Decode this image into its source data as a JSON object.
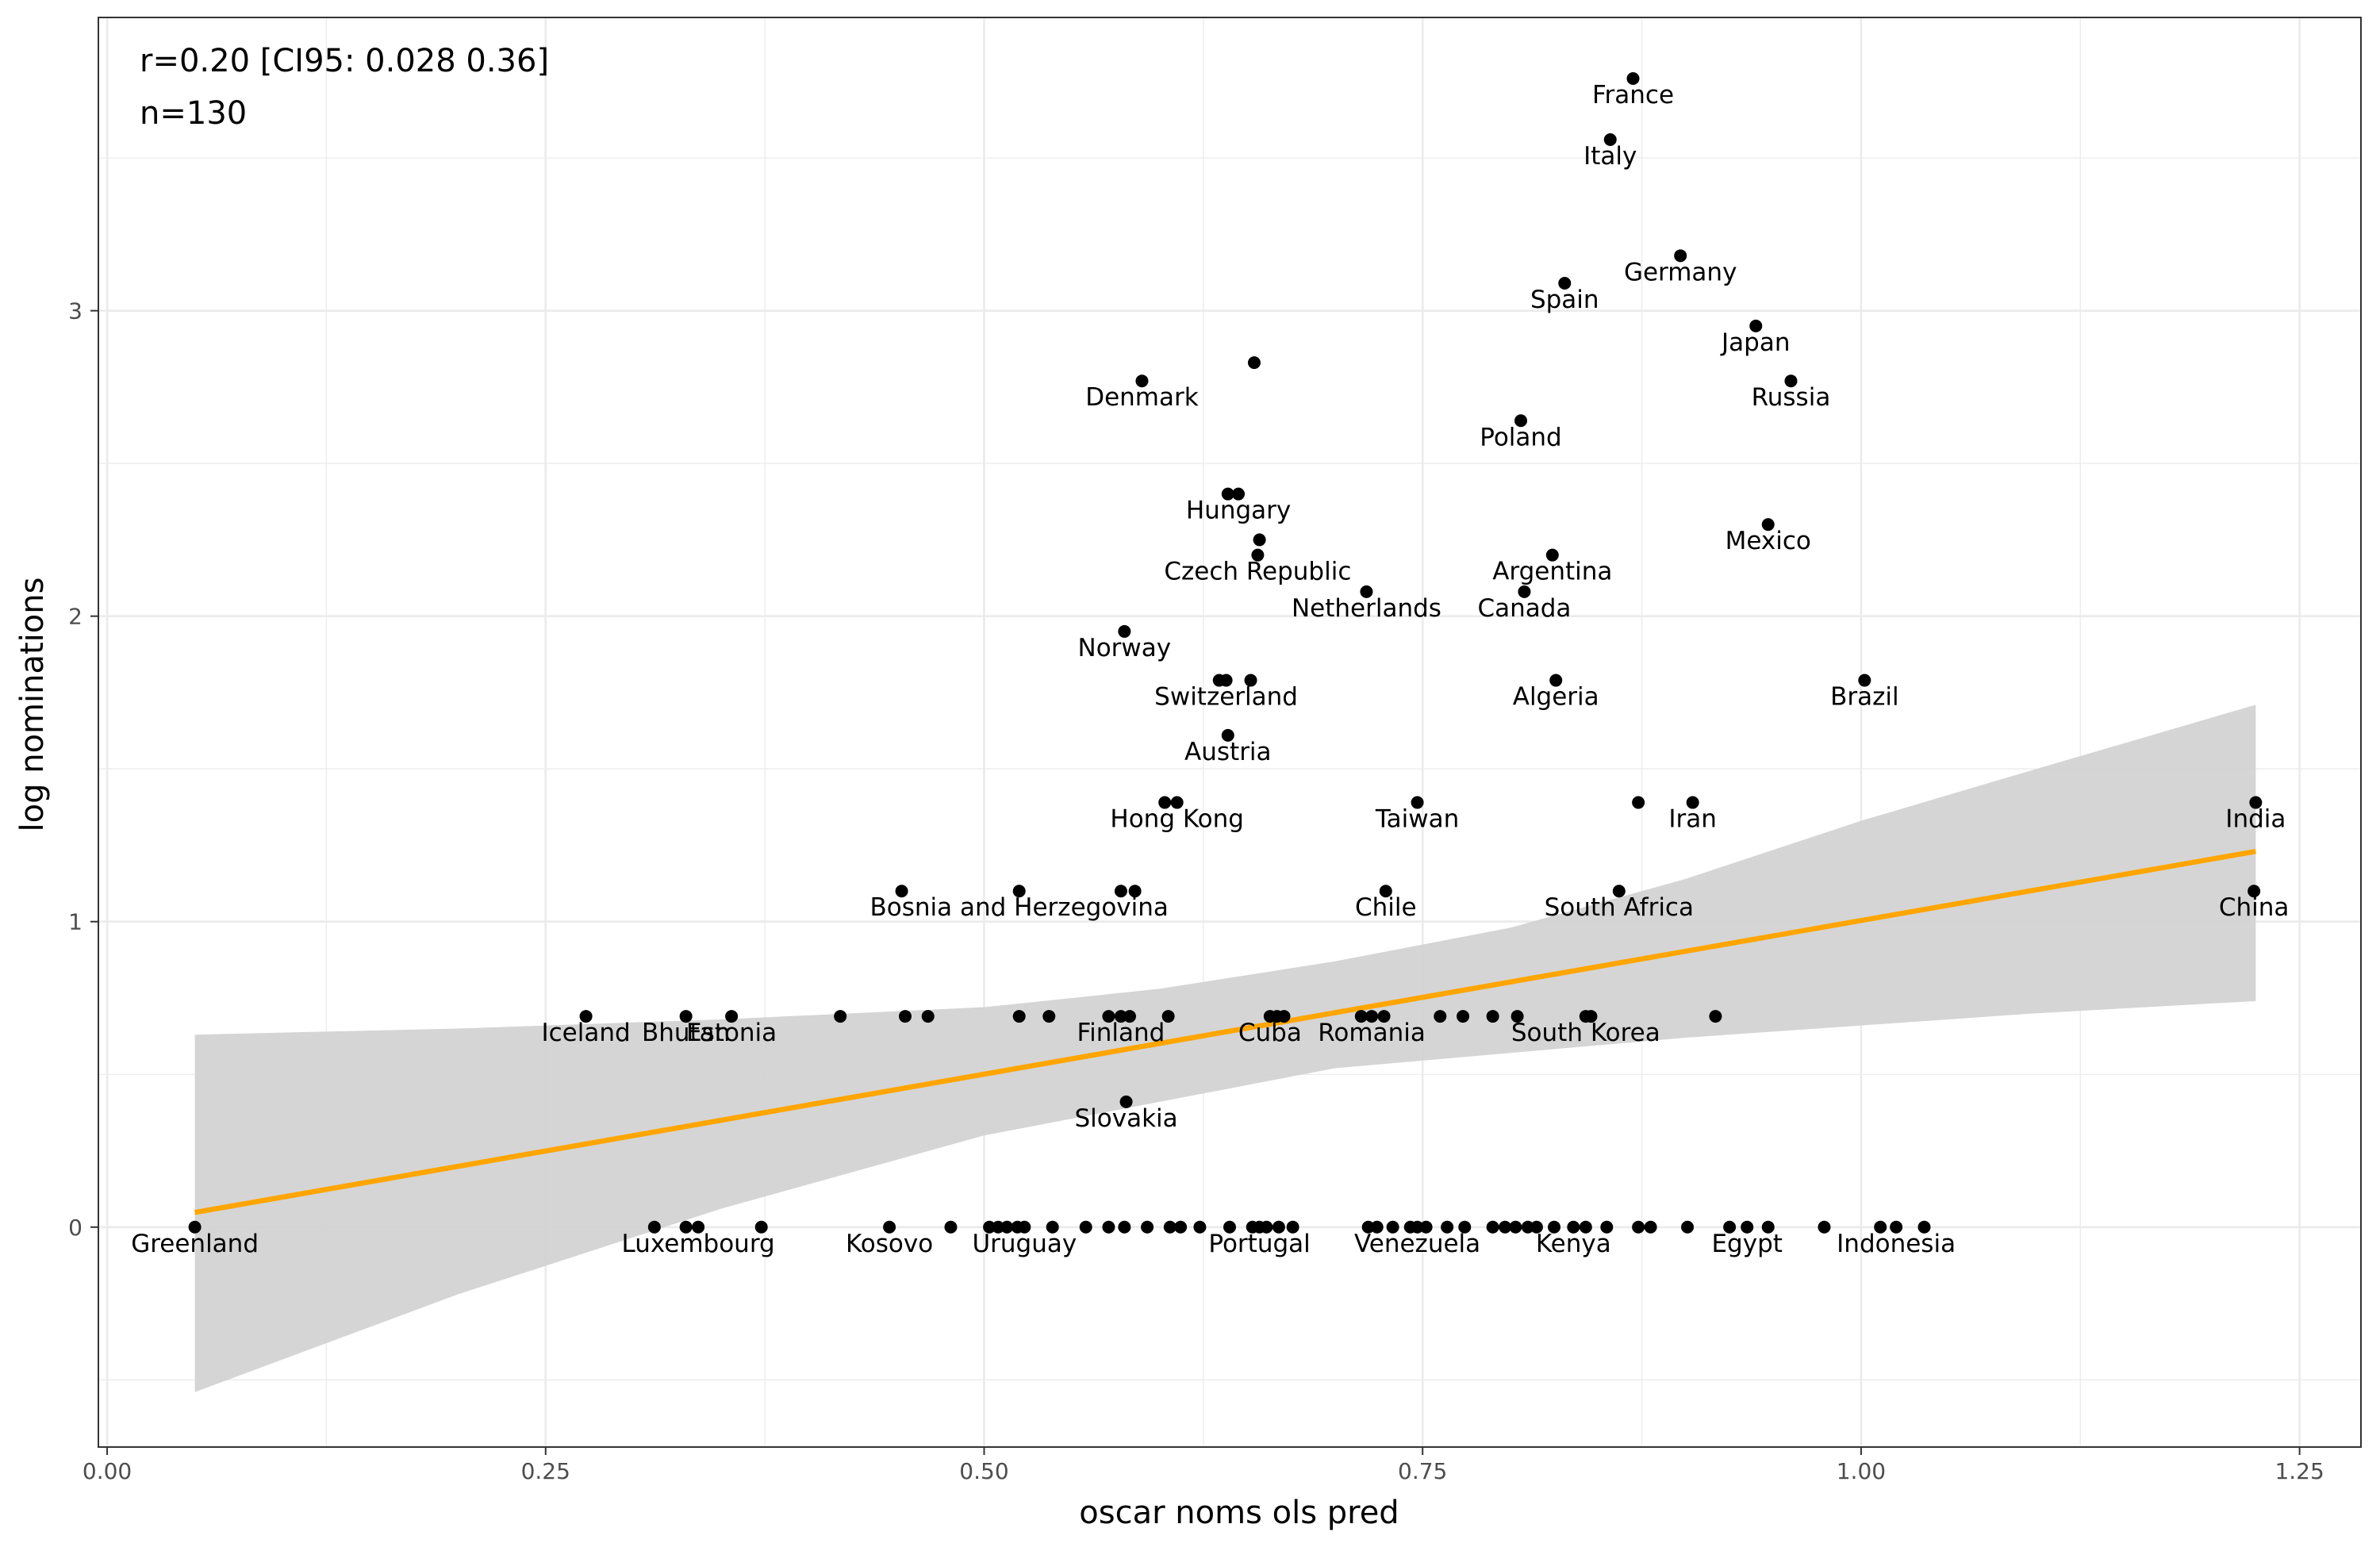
{
  "chart_data": {
    "type": "scatter",
    "title": "",
    "xlabel": "oscar noms ols pred",
    "ylabel": "log nominations",
    "xlim": [
      -0.005,
      1.285
    ],
    "ylim": [
      -0.72,
      3.96
    ],
    "x_ticks": [
      0.0,
      0.25,
      0.5,
      0.75,
      1.0,
      1.25
    ],
    "x_tick_labels": [
      "0.00",
      "0.25",
      "0.50",
      "0.75",
      "1.00",
      "1.25"
    ],
    "y_ticks": [
      0,
      1,
      2,
      3
    ],
    "y_tick_labels": [
      "0",
      "1",
      "2",
      "3"
    ],
    "grid": true,
    "annotations": [
      "r=0.20 [CI95: 0.028 0.36]",
      "n=130"
    ],
    "colors": {
      "points": "#000000",
      "fit_line": "#ffa500",
      "ci_band": "#d3d3d3",
      "grid": "#ebebeb",
      "panel_border": "#333333"
    },
    "fit": {
      "x": [
        0.05,
        1.225
      ],
      "y": [
        0.048,
        1.23
      ]
    },
    "ci_band": {
      "x": [
        0.05,
        0.2,
        0.35,
        0.5,
        0.6,
        0.7,
        0.8,
        0.9,
        1.0,
        1.1,
        1.225
      ],
      "upper": [
        0.63,
        0.65,
        0.68,
        0.72,
        0.78,
        0.87,
        0.98,
        1.14,
        1.33,
        1.5,
        1.71
      ],
      "lower": [
        -0.54,
        -0.22,
        0.06,
        0.3,
        0.41,
        0.52,
        0.57,
        0.62,
        0.66,
        0.7,
        0.74
      ]
    },
    "labeled_points": [
      {
        "label": "France",
        "x": 0.87,
        "y": 3.76
      },
      {
        "label": "Italy",
        "x": 0.857,
        "y": 3.56
      },
      {
        "label": "Germany",
        "x": 0.897,
        "y": 3.18
      },
      {
        "label": "Spain",
        "x": 0.831,
        "y": 3.09
      },
      {
        "label": "Japan",
        "x": 0.94,
        "y": 2.95
      },
      {
        "label": "Russia",
        "x": 0.96,
        "y": 2.77
      },
      {
        "label": "Denmark",
        "x": 0.59,
        "y": 2.77
      },
      {
        "label": "Poland",
        "x": 0.806,
        "y": 2.64
      },
      {
        "label": "Hungary",
        "x": 0.645,
        "y": 2.4
      },
      {
        "label": "Mexico",
        "x": 0.947,
        "y": 2.3
      },
      {
        "label": "Czech Republic",
        "x": 0.656,
        "y": 2.2
      },
      {
        "label": "Argentina",
        "x": 0.824,
        "y": 2.2
      },
      {
        "label": "Netherlands",
        "x": 0.718,
        "y": 2.08
      },
      {
        "label": "Canada",
        "x": 0.808,
        "y": 2.08
      },
      {
        "label": "Norway",
        "x": 0.58,
        "y": 1.95
      },
      {
        "label": "Switzerland",
        "x": 0.638,
        "y": 1.79
      },
      {
        "label": "Algeria",
        "x": 0.826,
        "y": 1.79
      },
      {
        "label": "Brazil",
        "x": 1.002,
        "y": 1.79
      },
      {
        "label": "Austria",
        "x": 0.639,
        "y": 1.61
      },
      {
        "label": "Hong Kong",
        "x": 0.61,
        "y": 1.39
      },
      {
        "label": "Taiwan",
        "x": 0.747,
        "y": 1.39
      },
      {
        "label": "Iran",
        "x": 0.904,
        "y": 1.39
      },
      {
        "label": "India",
        "x": 1.225,
        "y": 1.39
      },
      {
        "label": "Bosnia and Herzegovina",
        "x": 0.52,
        "y": 1.1
      },
      {
        "label": "Chile",
        "x": 0.729,
        "y": 1.1
      },
      {
        "label": "South Africa",
        "x": 0.862,
        "y": 1.1
      },
      {
        "label": "China",
        "x": 1.224,
        "y": 1.1
      },
      {
        "label": "Iceland",
        "x": 0.273,
        "y": 0.69
      },
      {
        "label": "Bhutan",
        "x": 0.33,
        "y": 0.69
      },
      {
        "label": "Estonia",
        "x": 0.356,
        "y": 0.69
      },
      {
        "label": "Finland",
        "x": 0.578,
        "y": 0.69
      },
      {
        "label": "Cuba",
        "x": 0.663,
        "y": 0.69
      },
      {
        "label": "Romania",
        "x": 0.721,
        "y": 0.69
      },
      {
        "label": "South Korea",
        "x": 0.843,
        "y": 0.69
      },
      {
        "label": "Slovakia",
        "x": 0.581,
        "y": 0.41
      },
      {
        "label": "Greenland",
        "x": 0.05,
        "y": 0.0
      },
      {
        "label": "Luxembourg",
        "x": 0.337,
        "y": 0.0
      },
      {
        "label": "Kosovo",
        "x": 0.446,
        "y": 0.0
      },
      {
        "label": "Uruguay",
        "x": 0.523,
        "y": 0.0
      },
      {
        "label": "Portugal",
        "x": 0.657,
        "y": 0.0
      },
      {
        "label": "Venezuela",
        "x": 0.747,
        "y": 0.0
      },
      {
        "label": "Kenya",
        "x": 0.836,
        "y": 0.0
      },
      {
        "label": "Egypt",
        "x": 0.935,
        "y": 0.0
      },
      {
        "label": "Indonesia",
        "x": 1.02,
        "y": 0.0
      }
    ],
    "other_points": [
      {
        "x": 0.654,
        "y": 2.83
      },
      {
        "x": 0.639,
        "y": 2.4
      },
      {
        "x": 0.657,
        "y": 2.25
      },
      {
        "x": 0.634,
        "y": 1.79
      },
      {
        "x": 0.652,
        "y": 1.79
      },
      {
        "x": 0.603,
        "y": 1.39
      },
      {
        "x": 0.873,
        "y": 1.39
      },
      {
        "x": 0.453,
        "y": 1.1
      },
      {
        "x": 0.578,
        "y": 1.1
      },
      {
        "x": 0.586,
        "y": 1.1
      },
      {
        "x": 0.418,
        "y": 0.69
      },
      {
        "x": 0.455,
        "y": 0.69
      },
      {
        "x": 0.468,
        "y": 0.69
      },
      {
        "x": 0.52,
        "y": 0.69
      },
      {
        "x": 0.537,
        "y": 0.69
      },
      {
        "x": 0.571,
        "y": 0.69
      },
      {
        "x": 0.583,
        "y": 0.69
      },
      {
        "x": 0.605,
        "y": 0.69
      },
      {
        "x": 0.667,
        "y": 0.69
      },
      {
        "x": 0.671,
        "y": 0.69
      },
      {
        "x": 0.715,
        "y": 0.69
      },
      {
        "x": 0.728,
        "y": 0.69
      },
      {
        "x": 0.76,
        "y": 0.69
      },
      {
        "x": 0.773,
        "y": 0.69
      },
      {
        "x": 0.79,
        "y": 0.69
      },
      {
        "x": 0.804,
        "y": 0.69
      },
      {
        "x": 0.846,
        "y": 0.69
      },
      {
        "x": 0.917,
        "y": 0.69
      },
      {
        "x": 0.312,
        "y": 0.0
      },
      {
        "x": 0.33,
        "y": 0.0
      },
      {
        "x": 0.373,
        "y": 0.0
      },
      {
        "x": 0.481,
        "y": 0.0
      },
      {
        "x": 0.503,
        "y": 0.0
      },
      {
        "x": 0.508,
        "y": 0.0
      },
      {
        "x": 0.513,
        "y": 0.0
      },
      {
        "x": 0.519,
        "y": 0.0
      },
      {
        "x": 0.539,
        "y": 0.0
      },
      {
        "x": 0.558,
        "y": 0.0
      },
      {
        "x": 0.571,
        "y": 0.0
      },
      {
        "x": 0.58,
        "y": 0.0
      },
      {
        "x": 0.593,
        "y": 0.0
      },
      {
        "x": 0.606,
        "y": 0.0
      },
      {
        "x": 0.612,
        "y": 0.0
      },
      {
        "x": 0.623,
        "y": 0.0
      },
      {
        "x": 0.64,
        "y": 0.0
      },
      {
        "x": 0.653,
        "y": 0.0
      },
      {
        "x": 0.661,
        "y": 0.0
      },
      {
        "x": 0.668,
        "y": 0.0
      },
      {
        "x": 0.676,
        "y": 0.0
      },
      {
        "x": 0.719,
        "y": 0.0
      },
      {
        "x": 0.724,
        "y": 0.0
      },
      {
        "x": 0.733,
        "y": 0.0
      },
      {
        "x": 0.743,
        "y": 0.0
      },
      {
        "x": 0.752,
        "y": 0.0
      },
      {
        "x": 0.764,
        "y": 0.0
      },
      {
        "x": 0.774,
        "y": 0.0
      },
      {
        "x": 0.79,
        "y": 0.0
      },
      {
        "x": 0.797,
        "y": 0.0
      },
      {
        "x": 0.803,
        "y": 0.0
      },
      {
        "x": 0.81,
        "y": 0.0
      },
      {
        "x": 0.815,
        "y": 0.0
      },
      {
        "x": 0.825,
        "y": 0.0
      },
      {
        "x": 0.843,
        "y": 0.0
      },
      {
        "x": 0.855,
        "y": 0.0
      },
      {
        "x": 0.873,
        "y": 0.0
      },
      {
        "x": 0.88,
        "y": 0.0
      },
      {
        "x": 0.901,
        "y": 0.0
      },
      {
        "x": 0.925,
        "y": 0.0
      },
      {
        "x": 0.947,
        "y": 0.0
      },
      {
        "x": 0.979,
        "y": 0.0
      },
      {
        "x": 1.011,
        "y": 0.0
      },
      {
        "x": 1.036,
        "y": 0.0
      }
    ]
  }
}
